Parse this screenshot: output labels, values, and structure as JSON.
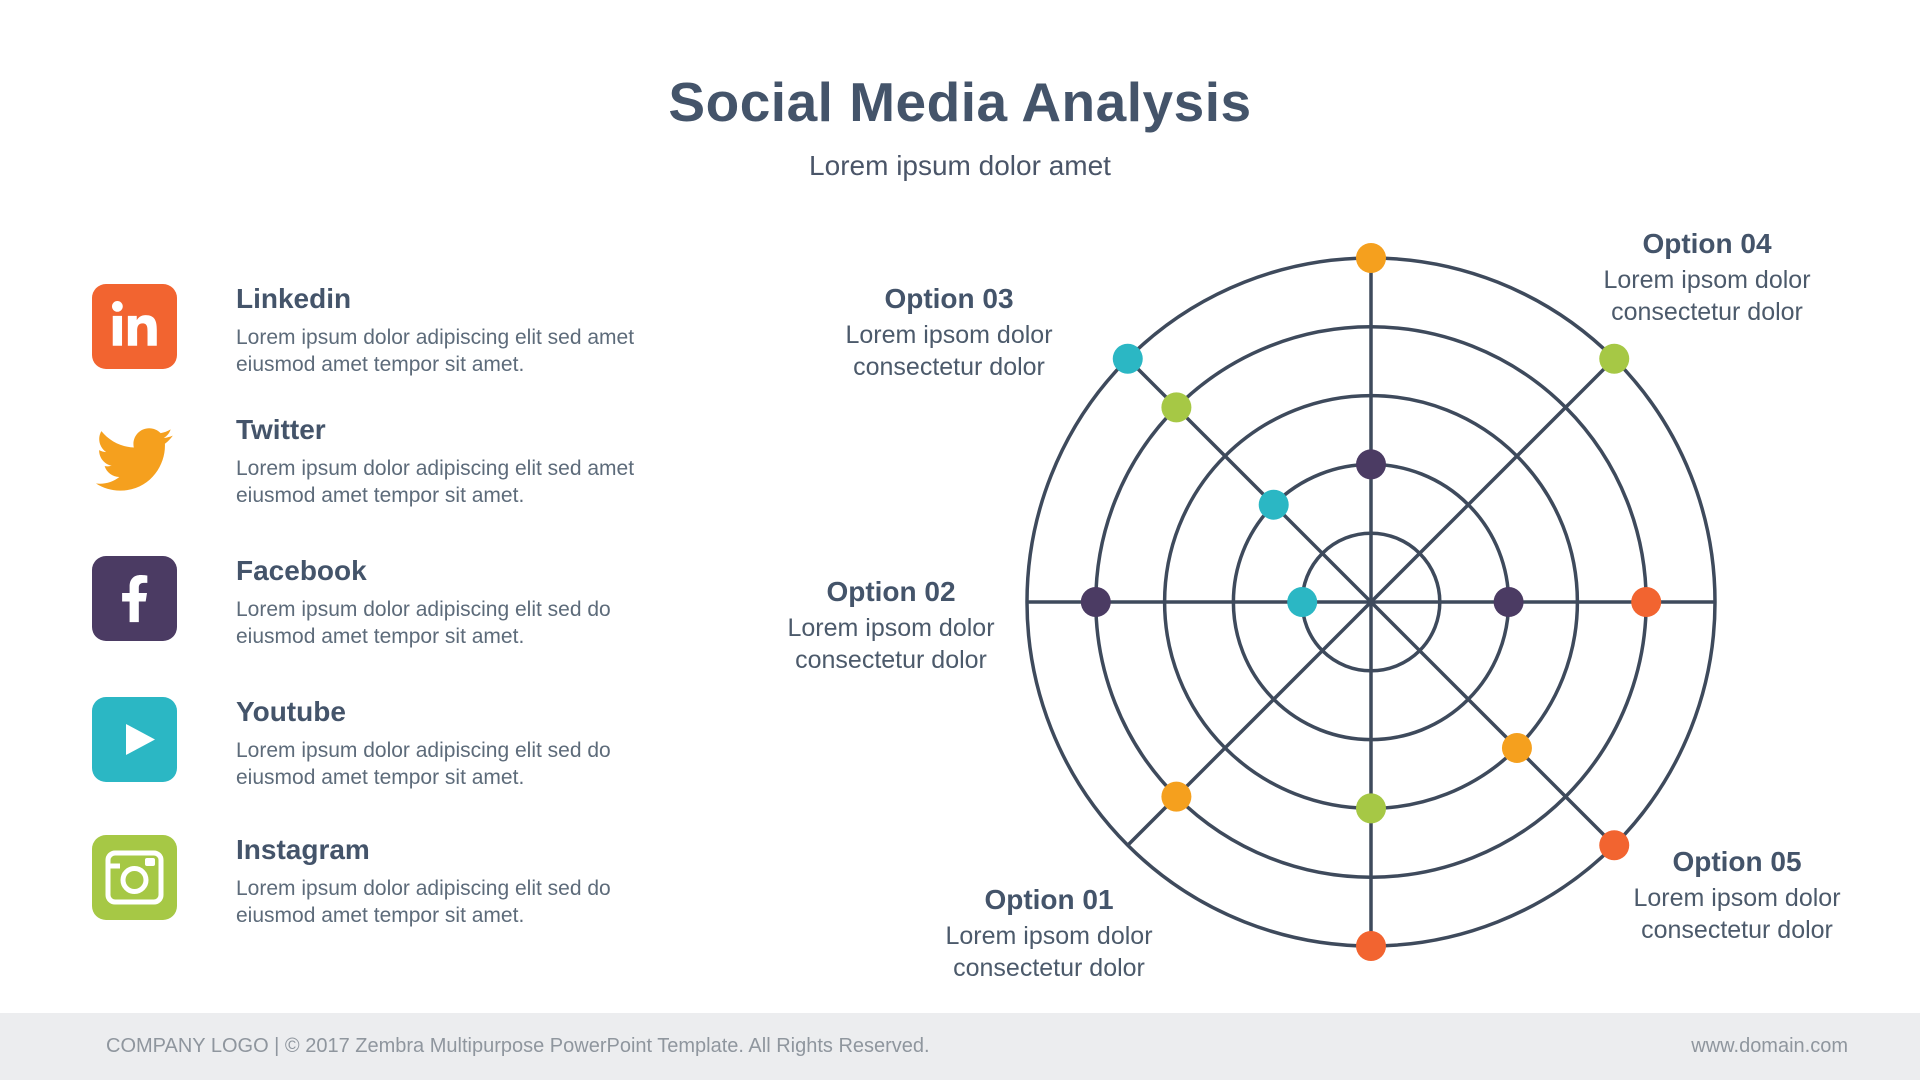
{
  "slide": {
    "title": "Social Media Analysis",
    "subtitle": "Lorem ipsum dolor amet"
  },
  "social_items": [
    {
      "name": "Linkedin",
      "description": "Lorem ipsum dolor adipiscing elit sed amet eiusmod  amet tempor sit amet.",
      "icon": "linkedin-icon",
      "color": "#F26430"
    },
    {
      "name": "Twitter",
      "description": "Lorem ipsum dolor adipiscing elit sed amet eiusmod  amet tempor sit amet.",
      "icon": "twitter-icon",
      "color": "#F5A01E"
    },
    {
      "name": "Facebook",
      "description": "Lorem ipsum dolor adipiscing elit sed do eiusmod amet tempor sit amet.",
      "icon": "facebook-icon",
      "color": "#4B3B63"
    },
    {
      "name": "Youtube",
      "description": "Lorem ipsum dolor adipiscing elit sed do eiusmod amet tempor sit amet.",
      "icon": "youtube-icon",
      "color": "#2BB7C4"
    },
    {
      "name": "Instagram",
      "description": "Lorem ipsum dolor adipiscing elit sed do eiusmod amet tempor sit amet.",
      "icon": "instagram-icon",
      "color": "#A6C845"
    }
  ],
  "chart_data": {
    "type": "radar",
    "rings": 5,
    "spokes": 8,
    "outer_radius": 344,
    "axis_color": "#3E4A5C",
    "dot_radius": 15,
    "points": [
      {
        "angle_deg": 90,
        "ring": 5,
        "color": "#F5A01E"
      },
      {
        "angle_deg": 90,
        "ring": 2,
        "color": "#4B3B63"
      },
      {
        "angle_deg": 135,
        "ring": 5,
        "color": "#2BB7C4"
      },
      {
        "angle_deg": 135,
        "ring": 4,
        "color": "#A6C845"
      },
      {
        "angle_deg": 135,
        "ring": 2,
        "color": "#2BB7C4"
      },
      {
        "angle_deg": 180,
        "ring": 4,
        "color": "#4B3B63"
      },
      {
        "angle_deg": 180,
        "ring": 1,
        "color": "#2BB7C4"
      },
      {
        "angle_deg": 45,
        "ring": 5,
        "color": "#A6C845"
      },
      {
        "angle_deg": 0,
        "ring": 2,
        "color": "#4B3B63"
      },
      {
        "angle_deg": 0,
        "ring": 4,
        "color": "#F26430"
      },
      {
        "angle_deg": 315,
        "ring": 3,
        "color": "#F5A01E"
      },
      {
        "angle_deg": 315,
        "ring": 5,
        "color": "#F26430"
      },
      {
        "angle_deg": 270,
        "ring": 3,
        "color": "#A6C845"
      },
      {
        "angle_deg": 270,
        "ring": 5,
        "color": "#F26430"
      },
      {
        "angle_deg": 225,
        "ring": 4,
        "color": "#F5A01E"
      }
    ],
    "labels": [
      {
        "title": "Option 01",
        "line1": "Lorem ipsom dolor",
        "line2": "consectetur dolor"
      },
      {
        "title": "Option 02",
        "line1": "Lorem ipsom dolor",
        "line2": "consectetur dolor"
      },
      {
        "title": "Option 03",
        "line1": "Lorem ipsom dolor",
        "line2": "consectetur dolor"
      },
      {
        "title": "Option 04",
        "line1": "Lorem ipsom dolor",
        "line2": "consectetur dolor"
      },
      {
        "title": "Option 05",
        "line1": "Lorem ipsom dolor",
        "line2": "consectetur dolor"
      }
    ]
  },
  "footer": {
    "left": "COMPANY LOGO | © 2017 Zembra Multipurpose PowerPoint Template. All Rights Reserved.",
    "right": "www.domain.com"
  }
}
